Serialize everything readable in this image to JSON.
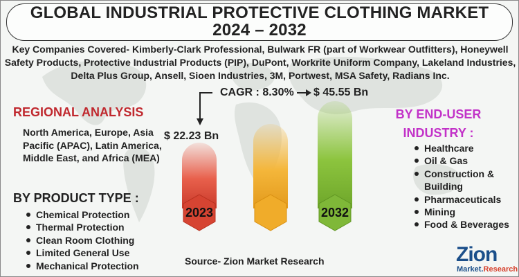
{
  "title": {
    "line1": "GLOBAL INDUSTRIAL PROTECTIVE CLOTHING MARKET",
    "line2": "2024 – 2032"
  },
  "companies": "Key Companies Covered- Kimberly-Clark Professional, Bulwark FR (part of Workwear Outfitters), Honeywell Safety Products, Protective Industrial Products (PIP), DuPont, Workrite Uniform Company, Lakeland Industries, Delta Plus Group, Ansell, Sioen Industries, 3M, Portwest, MSA Safety, Radians Inc.",
  "cagr": "CAGR : 8.30%",
  "value_2023": "$ 22.23 Bn",
  "value_2032": "$ 45.55 Bn",
  "year_start": "2023",
  "year_end": "2032",
  "regional": {
    "heading": "REGIONAL ANALYSIS",
    "text": "North America, Europe, Asia Pacific (APAC), Latin America, Middle East, and Africa (MEA)"
  },
  "product_type": {
    "heading": "BY PRODUCT TYPE :",
    "items": [
      "Chemical Protection",
      "Thermal Protection",
      "Clean Room Clothing",
      "Limited General Use",
      "Mechanical Protection"
    ]
  },
  "end_user": {
    "heading": "BY END-USER INDUSTRY :",
    "items": [
      "Healthcare",
      "Oil & Gas",
      "Construction & Building",
      "Pharmaceuticals",
      "Mining",
      "Food & Beverages"
    ]
  },
  "source": "Source- Zion Market Research",
  "logo": {
    "main": "Zion",
    "sub_1": "Market.",
    "sub_2": "Research"
  },
  "colors": {
    "bar_2023": "#e8604c",
    "bar_mid": "#f4b63a",
    "bar_2032": "#8cc43e",
    "regional_heading": "#c0282e",
    "enduser_heading": "#c232c8",
    "logo": "#1b4f8a"
  }
}
